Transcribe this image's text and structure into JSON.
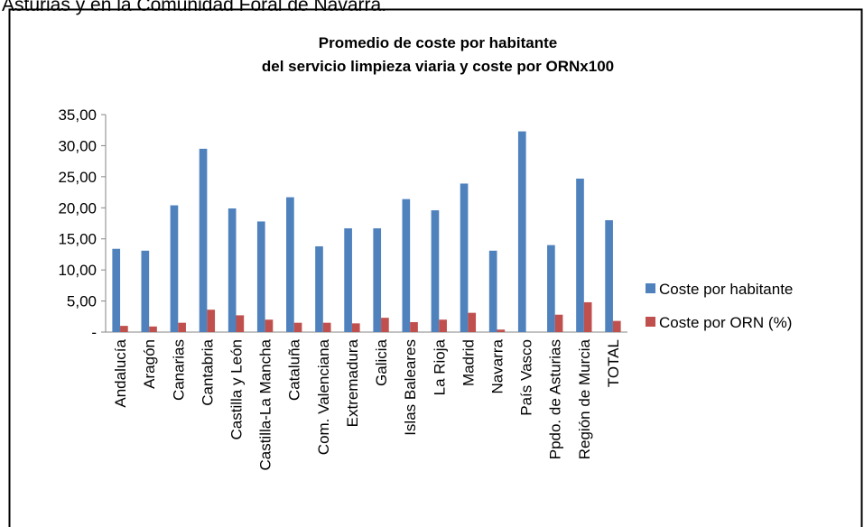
{
  "page_text": "Asturias y en la Comunidad Foral de Navarra.",
  "chart_data": {
    "type": "bar",
    "title": [
      "Promedio de coste por habitante",
      "del servicio limpieza viaria y coste por ORNx100"
    ],
    "categories": [
      "Andalucía",
      "Aragón",
      "Canarias",
      "Cantabria",
      "Castilla y León",
      "Castilla-La Mancha",
      "Cataluña",
      "Com. Valenciana",
      "Extremadura",
      "Galicia",
      "Islas Baleares",
      "La Rioja",
      "Madrid",
      "Navarra",
      "País Vasco",
      "Ppdo. de Asturias",
      "Región de Murcia",
      "TOTAL"
    ],
    "series": [
      {
        "name": "Coste por habitante",
        "color": "#4f81bd",
        "values": [
          13.4,
          13.1,
          20.4,
          29.5,
          19.9,
          17.8,
          21.7,
          13.8,
          16.7,
          16.7,
          21.4,
          19.6,
          23.9,
          13.1,
          32.3,
          14.0,
          24.7,
          18.0
        ]
      },
      {
        "name": "Coste por ORN (%)",
        "color": "#c0504d",
        "values": [
          1.0,
          0.9,
          1.5,
          3.6,
          2.7,
          2.0,
          1.5,
          1.5,
          1.4,
          2.3,
          1.6,
          2.0,
          3.1,
          0.4,
          null,
          2.8,
          4.8,
          1.8
        ]
      }
    ],
    "ylim": [
      0,
      35
    ],
    "yticks": [
      {
        "value": 0,
        "label": "-"
      },
      {
        "value": 5,
        "label": "5,00"
      },
      {
        "value": 10,
        "label": "10,00"
      },
      {
        "value": 15,
        "label": "15,00"
      },
      {
        "value": 20,
        "label": "20,00"
      },
      {
        "value": 25,
        "label": "25,00"
      },
      {
        "value": 30,
        "label": "30,00"
      },
      {
        "value": 35,
        "label": "35,00"
      }
    ],
    "legend": "right"
  }
}
